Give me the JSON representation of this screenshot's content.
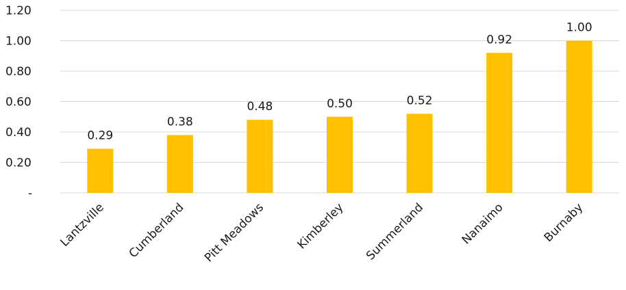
{
  "chart_data": {
    "type": "bar",
    "categories": [
      "Lantzville",
      "Cumberland",
      "Pitt Meadows",
      "Kimberley",
      "Summerland",
      "Nanaimo",
      "Burnaby"
    ],
    "values": [
      0.29,
      0.38,
      0.48,
      0.5,
      0.52,
      0.92,
      1.0
    ],
    "data_labels": [
      "0.29",
      "0.38",
      "0.48",
      "0.50",
      "0.52",
      "0.92",
      "1.00"
    ],
    "yticks": [
      0,
      0.2,
      0.4,
      0.6,
      0.8,
      1.0,
      1.2
    ],
    "ytick_labels": [
      "-",
      "0.20",
      "0.40",
      "0.60",
      "0.80",
      "1.00",
      "1.20"
    ],
    "ylim": [
      0,
      1.2
    ],
    "grid": true,
    "legend": "none",
    "bar_color": "#FFC000",
    "gridline_color": "#D9D9D9"
  }
}
